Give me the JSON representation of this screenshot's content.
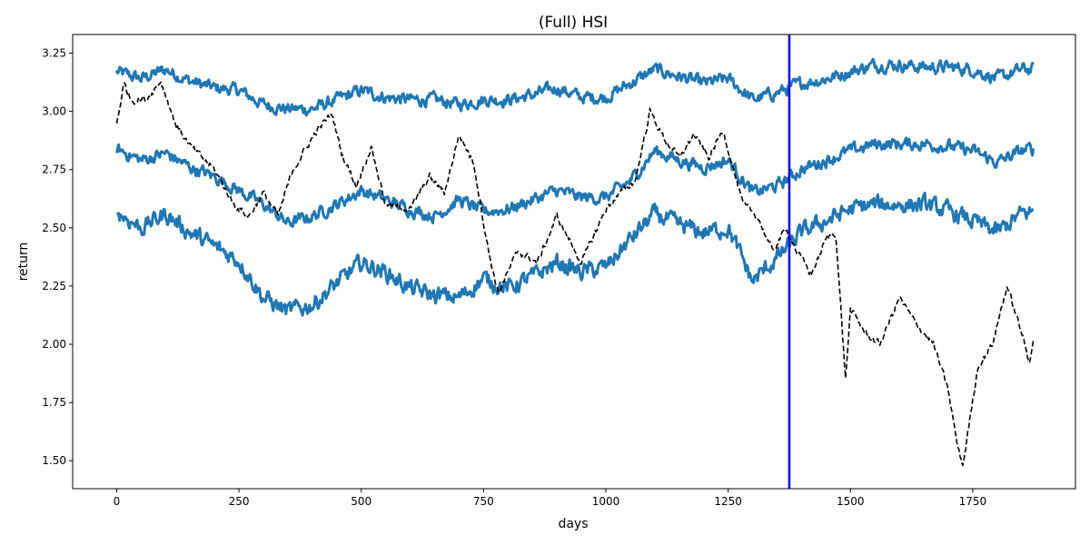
{
  "chart_data": {
    "type": "line",
    "title": "(Full) HSI",
    "xlabel": "days",
    "ylabel": "return",
    "xlim": [
      -90,
      1960
    ],
    "ylim": [
      1.38,
      3.33
    ],
    "xticks": [
      0,
      250,
      500,
      750,
      1000,
      1250,
      1500,
      1750
    ],
    "xtick_labels": [
      "0",
      "250",
      "500",
      "750",
      "1000",
      "1250",
      "1500",
      "1750"
    ],
    "yticks": [
      1.5,
      1.75,
      2.0,
      2.25,
      2.5,
      2.75,
      3.0,
      3.25
    ],
    "ytick_labels": [
      "1.50",
      "1.75",
      "2.00",
      "2.25",
      "2.50",
      "2.75",
      "3.00",
      "3.25"
    ],
    "grid": false,
    "legend": "none",
    "vertical_line": {
      "x": 1375,
      "color": "#0000ff"
    },
    "series": [
      {
        "style": "solid",
        "color": "#1f77b4",
        "noise": 0.022,
        "points": [
          [
            0,
            3.17
          ],
          [
            50,
            3.14
          ],
          [
            100,
            3.18
          ],
          [
            150,
            3.13
          ],
          [
            200,
            3.1
          ],
          [
            250,
            3.09
          ],
          [
            300,
            3.03
          ],
          [
            350,
            3.01
          ],
          [
            400,
            3.01
          ],
          [
            450,
            3.05
          ],
          [
            500,
            3.09
          ],
          [
            550,
            3.06
          ],
          [
            600,
            3.05
          ],
          [
            650,
            3.05
          ],
          [
            700,
            3.03
          ],
          [
            750,
            3.05
          ],
          [
            800,
            3.05
          ],
          [
            850,
            3.07
          ],
          [
            900,
            3.1
          ],
          [
            950,
            3.06
          ],
          [
            1000,
            3.06
          ],
          [
            1050,
            3.12
          ],
          [
            1100,
            3.18
          ],
          [
            1150,
            3.15
          ],
          [
            1200,
            3.12
          ],
          [
            1250,
            3.14
          ],
          [
            1300,
            3.05
          ],
          [
            1350,
            3.08
          ],
          [
            1400,
            3.12
          ],
          [
            1450,
            3.14
          ],
          [
            1500,
            3.17
          ],
          [
            1550,
            3.2
          ],
          [
            1600,
            3.2
          ],
          [
            1650,
            3.19
          ],
          [
            1700,
            3.19
          ],
          [
            1750,
            3.18
          ],
          [
            1800,
            3.14
          ],
          [
            1850,
            3.18
          ],
          [
            1875,
            3.18
          ]
        ]
      },
      {
        "style": "solid",
        "color": "#1f77b4",
        "noise": 0.022,
        "points": [
          [
            0,
            2.84
          ],
          [
            50,
            2.79
          ],
          [
            100,
            2.82
          ],
          [
            150,
            2.76
          ],
          [
            200,
            2.72
          ],
          [
            250,
            2.66
          ],
          [
            300,
            2.6
          ],
          [
            350,
            2.52
          ],
          [
            400,
            2.55
          ],
          [
            450,
            2.6
          ],
          [
            500,
            2.66
          ],
          [
            550,
            2.62
          ],
          [
            600,
            2.58
          ],
          [
            650,
            2.55
          ],
          [
            700,
            2.62
          ],
          [
            750,
            2.57
          ],
          [
            800,
            2.58
          ],
          [
            850,
            2.62
          ],
          [
            900,
            2.66
          ],
          [
            950,
            2.63
          ],
          [
            1000,
            2.63
          ],
          [
            1050,
            2.7
          ],
          [
            1100,
            2.83
          ],
          [
            1150,
            2.79
          ],
          [
            1200,
            2.76
          ],
          [
            1250,
            2.79
          ],
          [
            1300,
            2.65
          ],
          [
            1350,
            2.68
          ],
          [
            1400,
            2.75
          ],
          [
            1450,
            2.79
          ],
          [
            1500,
            2.83
          ],
          [
            1550,
            2.86
          ],
          [
            1600,
            2.86
          ],
          [
            1650,
            2.86
          ],
          [
            1700,
            2.85
          ],
          [
            1750,
            2.83
          ],
          [
            1800,
            2.78
          ],
          [
            1850,
            2.83
          ],
          [
            1875,
            2.84
          ]
        ]
      },
      {
        "style": "solid",
        "color": "#1f77b4",
        "noise": 0.03,
        "points": [
          [
            0,
            2.57
          ],
          [
            50,
            2.5
          ],
          [
            100,
            2.56
          ],
          [
            150,
            2.48
          ],
          [
            200,
            2.42
          ],
          [
            250,
            2.36
          ],
          [
            300,
            2.2
          ],
          [
            350,
            2.14
          ],
          [
            400,
            2.17
          ],
          [
            450,
            2.26
          ],
          [
            500,
            2.35
          ],
          [
            550,
            2.31
          ],
          [
            600,
            2.24
          ],
          [
            650,
            2.21
          ],
          [
            700,
            2.2
          ],
          [
            750,
            2.28
          ],
          [
            800,
            2.24
          ],
          [
            850,
            2.29
          ],
          [
            900,
            2.35
          ],
          [
            950,
            2.31
          ],
          [
            1000,
            2.33
          ],
          [
            1050,
            2.45
          ],
          [
            1100,
            2.56
          ],
          [
            1150,
            2.51
          ],
          [
            1200,
            2.48
          ],
          [
            1250,
            2.5
          ],
          [
            1300,
            2.27
          ],
          [
            1350,
            2.37
          ],
          [
            1400,
            2.48
          ],
          [
            1450,
            2.53
          ],
          [
            1500,
            2.58
          ],
          [
            1550,
            2.6
          ],
          [
            1600,
            2.6
          ],
          [
            1650,
            2.6
          ],
          [
            1700,
            2.57
          ],
          [
            1750,
            2.53
          ],
          [
            1800,
            2.48
          ],
          [
            1850,
            2.56
          ],
          [
            1875,
            2.57
          ]
        ]
      },
      {
        "style": "dashed",
        "color": "#000000",
        "noise": 0.012,
        "points": [
          [
            0,
            2.95
          ],
          [
            15,
            3.12
          ],
          [
            30,
            3.05
          ],
          [
            60,
            3.05
          ],
          [
            90,
            3.13
          ],
          [
            120,
            2.95
          ],
          [
            150,
            2.85
          ],
          [
            200,
            2.75
          ],
          [
            240,
            2.6
          ],
          [
            270,
            2.55
          ],
          [
            300,
            2.65
          ],
          [
            330,
            2.55
          ],
          [
            360,
            2.75
          ],
          [
            410,
            2.92
          ],
          [
            440,
            2.99
          ],
          [
            460,
            2.82
          ],
          [
            490,
            2.68
          ],
          [
            520,
            2.85
          ],
          [
            550,
            2.6
          ],
          [
            600,
            2.58
          ],
          [
            640,
            2.72
          ],
          [
            670,
            2.65
          ],
          [
            700,
            2.9
          ],
          [
            730,
            2.78
          ],
          [
            760,
            2.4
          ],
          [
            780,
            2.22
          ],
          [
            820,
            2.4
          ],
          [
            860,
            2.35
          ],
          [
            900,
            2.55
          ],
          [
            950,
            2.35
          ],
          [
            1000,
            2.58
          ],
          [
            1030,
            2.65
          ],
          [
            1060,
            2.7
          ],
          [
            1090,
            3.0
          ],
          [
            1120,
            2.88
          ],
          [
            1150,
            2.8
          ],
          [
            1180,
            2.9
          ],
          [
            1210,
            2.8
          ],
          [
            1240,
            2.92
          ],
          [
            1280,
            2.6
          ],
          [
            1310,
            2.55
          ],
          [
            1340,
            2.4
          ],
          [
            1370,
            2.5
          ],
          [
            1390,
            2.4
          ],
          [
            1420,
            2.3
          ],
          [
            1450,
            2.45
          ],
          [
            1470,
            2.48
          ],
          [
            1490,
            1.85
          ],
          [
            1500,
            2.15
          ],
          [
            1530,
            2.05
          ],
          [
            1560,
            2.0
          ],
          [
            1600,
            2.2
          ],
          [
            1630,
            2.1
          ],
          [
            1670,
            2.0
          ],
          [
            1700,
            1.8
          ],
          [
            1720,
            1.55
          ],
          [
            1730,
            1.48
          ],
          [
            1760,
            1.9
          ],
          [
            1790,
            2.0
          ],
          [
            1820,
            2.25
          ],
          [
            1850,
            2.05
          ],
          [
            1865,
            1.92
          ],
          [
            1875,
            2.04
          ]
        ]
      }
    ]
  }
}
